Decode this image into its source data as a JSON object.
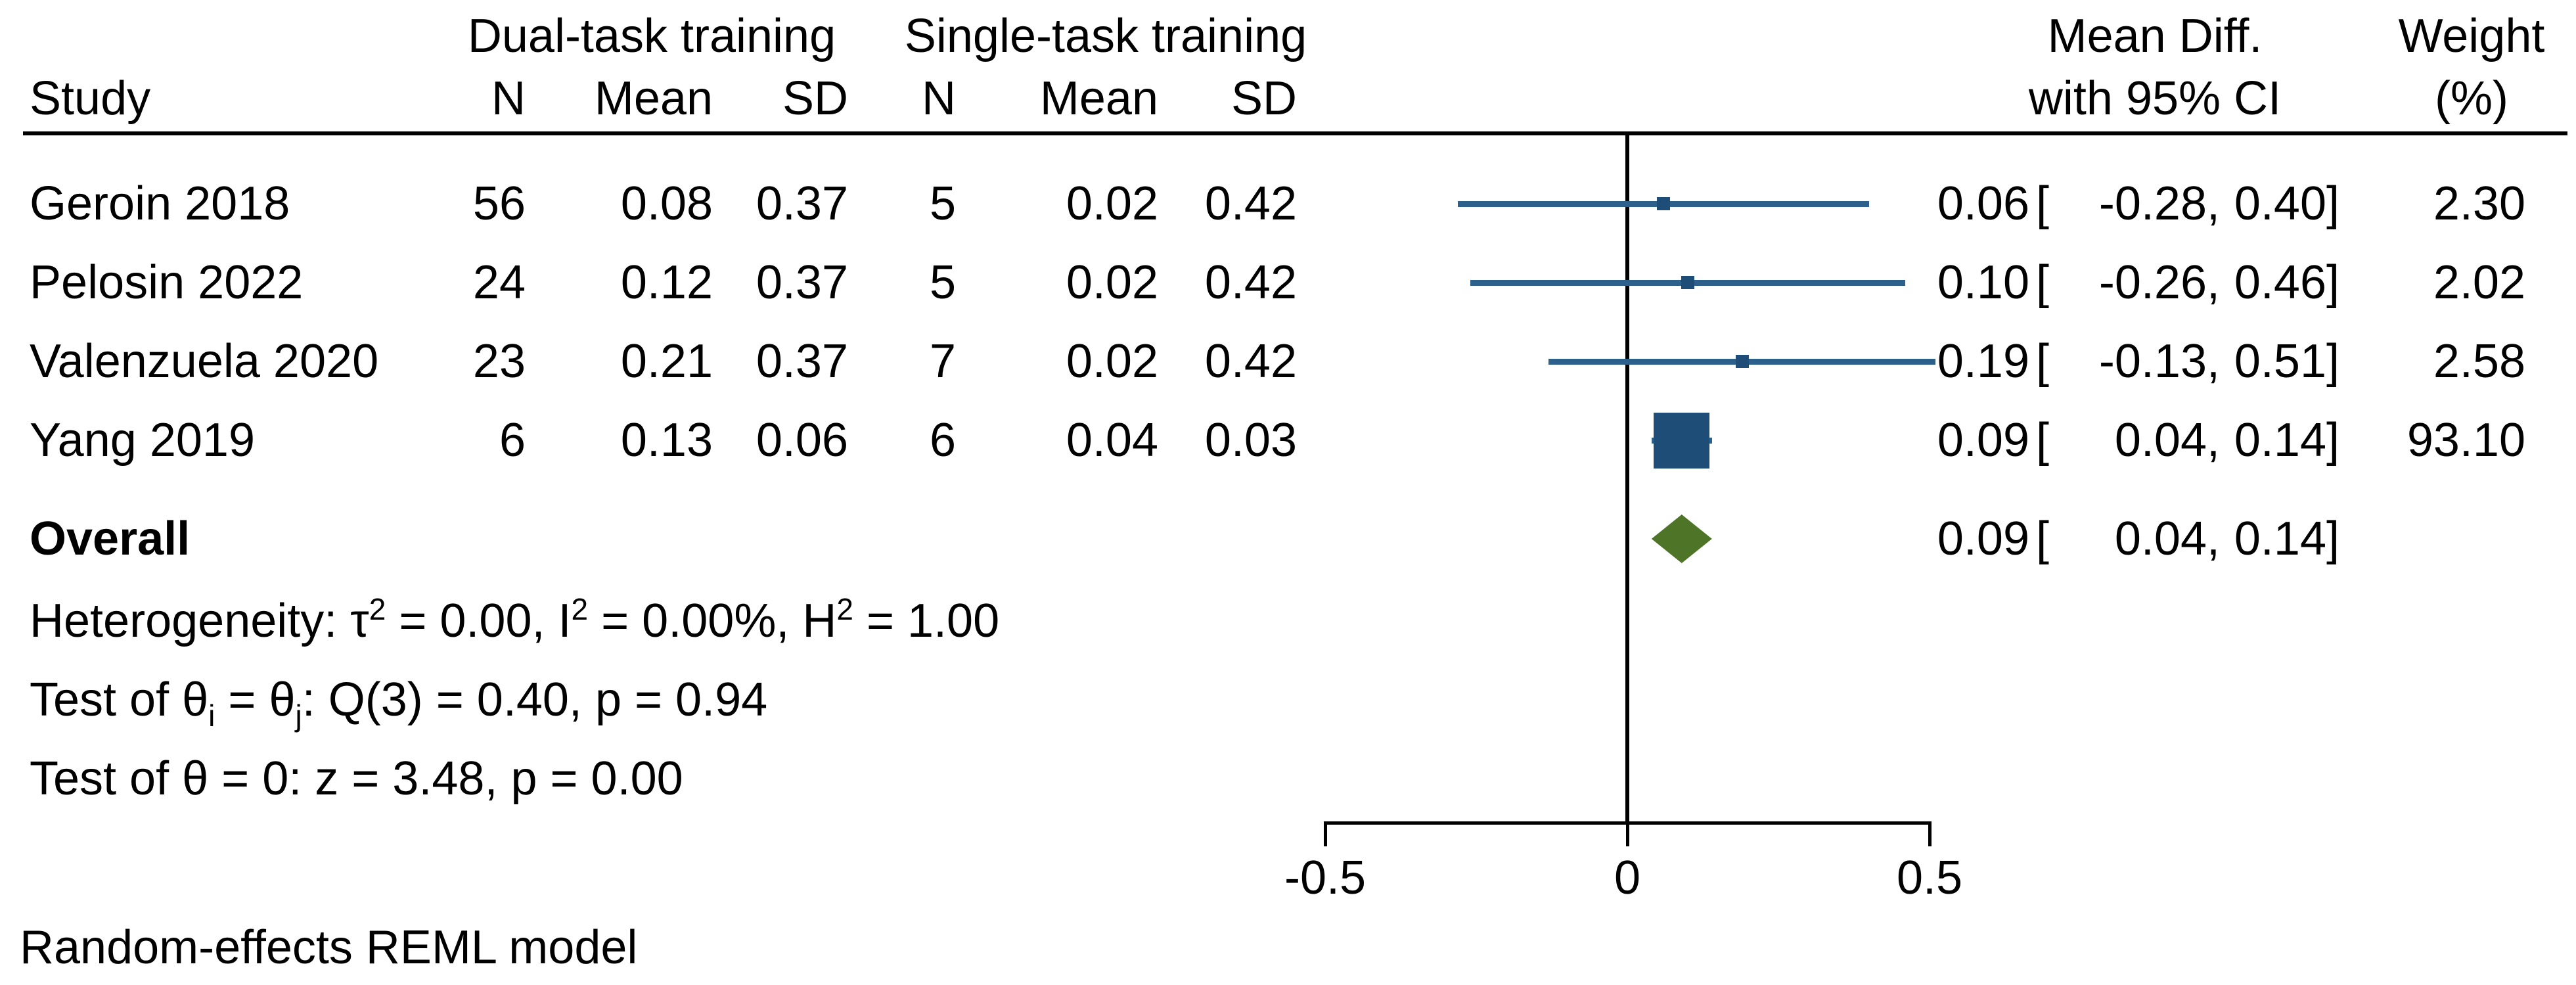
{
  "header": {
    "col_study": "Study",
    "group1": {
      "title": "Dual-task training",
      "cols": [
        "N",
        "Mean",
        "SD"
      ]
    },
    "group2": {
      "title": "Single-task training",
      "cols": [
        "N",
        "Mean",
        "SD"
      ]
    },
    "effect": {
      "line1": "Mean Diff.",
      "line2": "with 95% CI"
    },
    "weight": {
      "line1": "Weight",
      "line2": "(%)"
    }
  },
  "ci_format": {
    "open": "[",
    "comma": ",",
    "close": "]"
  },
  "chart_data": {
    "type": "forest",
    "effect_measure": "Mean Diff. with 95% CI",
    "x_axis": {
      "range": [
        -0.5,
        0.5
      ],
      "ticks": [
        -0.5,
        0,
        0.5
      ],
      "tick_labels": [
        "-0.5",
        "0",
        "0.5"
      ],
      "zero_line": 0
    },
    "studies": [
      {
        "name": "Geroin 2018",
        "n1": "56",
        "mean1": "0.08",
        "sd1": "0.37",
        "n2": "5",
        "mean2": "0.02",
        "sd2": "0.42",
        "est": 0.06,
        "ci_lo": -0.28,
        "ci_hi": 0.4,
        "est_label": "0.06",
        "ci_lo_label": "-0.28",
        "ci_hi_label": "0.40",
        "weight": 2.3,
        "weight_label": "2.30"
      },
      {
        "name": "Pelosin 2022",
        "n1": "24",
        "mean1": "0.12",
        "sd1": "0.37",
        "n2": "5",
        "mean2": "0.02",
        "sd2": "0.42",
        "est": 0.1,
        "ci_lo": -0.26,
        "ci_hi": 0.46,
        "est_label": "0.10",
        "ci_lo_label": "-0.26",
        "ci_hi_label": "0.46",
        "weight": 2.02,
        "weight_label": "2.02"
      },
      {
        "name": "Valenzuela 2020",
        "n1": "23",
        "mean1": "0.21",
        "sd1": "0.37",
        "n2": "7",
        "mean2": "0.02",
        "sd2": "0.42",
        "est": 0.19,
        "ci_lo": -0.13,
        "ci_hi": 0.51,
        "est_label": "0.19",
        "ci_lo_label": "-0.13",
        "ci_hi_label": "0.51",
        "weight": 2.58,
        "weight_label": "2.58"
      },
      {
        "name": "Yang 2019",
        "n1": "6",
        "mean1": "0.13",
        "sd1": "0.06",
        "n2": "6",
        "mean2": "0.04",
        "sd2": "0.03",
        "est": 0.09,
        "ci_lo": 0.04,
        "ci_hi": 0.14,
        "est_label": "0.09",
        "ci_lo_label": "0.04",
        "ci_hi_label": "0.14",
        "weight": 93.1,
        "weight_label": "93.10"
      }
    ],
    "overall": {
      "label": "Overall",
      "est": 0.09,
      "ci_lo": 0.04,
      "ci_hi": 0.14,
      "est_label": "0.09",
      "ci_lo_label": "0.04",
      "ci_hi_label": "0.14"
    },
    "colors": {
      "ci_line": "#2e608c",
      "marker": "#1e4d77",
      "diamond": "#4d7427",
      "axis": "#000000"
    },
    "legend_position": "none",
    "grid": false
  },
  "stats": {
    "heterogeneity": [
      {
        "text": "Heterogeneity: τ",
        "style": "normal"
      },
      {
        "text": "2",
        "style": "sup"
      },
      {
        "text": " = 0.00, I",
        "style": "normal"
      },
      {
        "text": "2",
        "style": "sup"
      },
      {
        "text": " = 0.00%, H",
        "style": "normal"
      },
      {
        "text": "2",
        "style": "sup"
      },
      {
        "text": " = 1.00",
        "style": "normal"
      }
    ],
    "test_q": [
      {
        "text": "Test of θ",
        "style": "normal"
      },
      {
        "text": "i",
        "style": "sub"
      },
      {
        "text": " = θ",
        "style": "normal"
      },
      {
        "text": "j",
        "style": "sub"
      },
      {
        "text": ": Q(3) = 0.40, p = 0.94",
        "style": "normal"
      }
    ],
    "test_z": [
      {
        "text": "Test of θ = 0: z = 3.48, p = 0.00",
        "style": "normal"
      }
    ]
  },
  "footer": {
    "note": "Random-effects REML model"
  }
}
